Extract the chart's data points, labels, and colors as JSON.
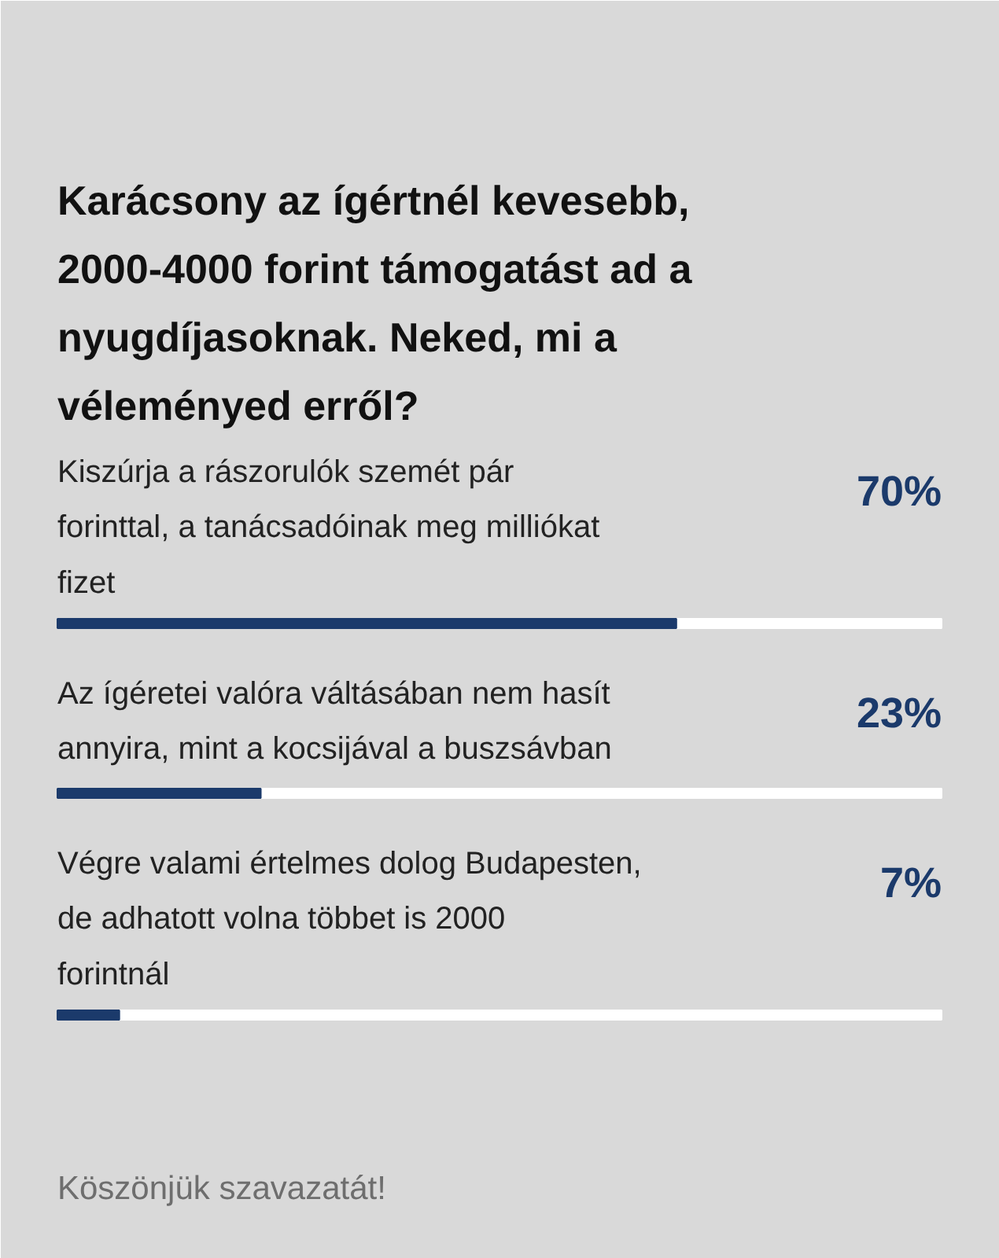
{
  "chart_data": {
    "type": "bar",
    "orientation": "horizontal",
    "title": "Karácsony az ígértnél kevesebb, 2000-4000 forint támogatást ad a nyugdíjasoknak. Neked, mi a véleményed erről?",
    "categories": [
      "Kiszúrja a rászorulók szemét pár forinttal, a tanácsadóinak meg milliókat fizet",
      "Az ígéretei valóra váltásában nem hasít annyira, mint a kocsijával a buszsávban",
      "Végre valami értelmes dolog Budapesten, de adhatott volna többet is 2000 forintnál"
    ],
    "values": [
      70,
      23,
      7
    ],
    "value_labels": [
      "70%",
      "23%",
      "7%"
    ],
    "color": "#1b3a6b",
    "xlim": [
      0,
      100
    ],
    "tick_labels": false,
    "grid": false,
    "annotations": [
      "Köszönjük szavazatát!"
    ]
  }
}
